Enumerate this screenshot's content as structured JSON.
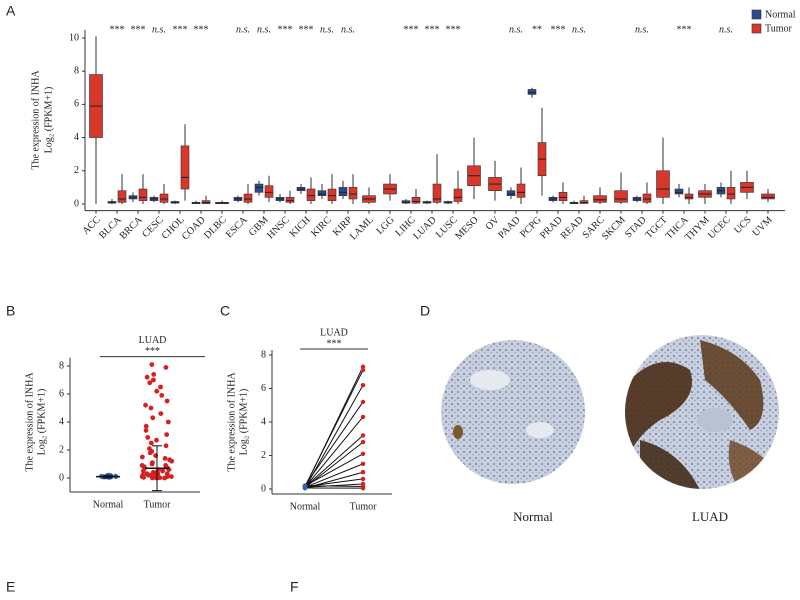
{
  "panels": {
    "labels": [
      "A",
      "B",
      "C",
      "D",
      "E",
      "F"
    ],
    "images": [
      {
        "caption": "Normal"
      },
      {
        "caption": "LUAD"
      }
    ]
  },
  "chart_data": [
    {
      "type": "box",
      "ylabel": [
        "The expression of INHA",
        "Log₂ (FPKM+1)"
      ],
      "categories": [
        "ACC",
        "BLCA",
        "BRCA",
        "CESC",
        "CHOL",
        "COAD",
        "DLBC",
        "ESCA",
        "GBM",
        "HNSC",
        "KICH",
        "KIRC",
        "KIRP",
        "LAML",
        "LGG",
        "LIHC",
        "LUAD",
        "LUSC",
        "MESO",
        "OV",
        "PAAD",
        "PCPG",
        "PRAD",
        "READ",
        "SARC",
        "SKCM",
        "STAD",
        "TGCT",
        "THCA",
        "THYM",
        "UCEC",
        "UCS",
        "UVM"
      ],
      "significance": [
        null,
        "***",
        "***",
        "n.s.",
        "***",
        "***",
        null,
        "n.s.",
        "n.s.",
        "***",
        "***",
        "n.s.",
        "n.s.",
        null,
        null,
        "***",
        "***",
        "***",
        null,
        null,
        "n.s.",
        "**",
        "***",
        "n.s.",
        null,
        null,
        "n.s.",
        null,
        "***",
        null,
        "n.s.",
        null,
        null
      ],
      "series": [
        {
          "name": "Normal",
          "color": "#2b4a8c",
          "boxes": [
            null,
            [
              0,
              0.05,
              0.1,
              0.15,
              0.3
            ],
            [
              0.1,
              0.3,
              0.4,
              0.5,
              0.7
            ],
            [
              0.1,
              0.2,
              0.3,
              0.4,
              0.5
            ],
            [
              0,
              0.05,
              0.1,
              0.15,
              0.2
            ],
            [
              0,
              0.02,
              0.05,
              0.1,
              0.2
            ],
            null,
            [
              0.1,
              0.2,
              0.3,
              0.4,
              0.5
            ],
            [
              0.5,
              0.7,
              1.0,
              1.2,
              1.4
            ],
            [
              0.1,
              0.2,
              0.3,
              0.4,
              0.6
            ],
            [
              0.6,
              0.8,
              0.9,
              1.0,
              1.2
            ],
            [
              0.3,
              0.5,
              0.6,
              0.8,
              1.2
            ],
            [
              0.3,
              0.5,
              0.7,
              1.0,
              1.4
            ],
            null,
            null,
            [
              0,
              0.05,
              0.1,
              0.2,
              0.3
            ],
            [
              0,
              0.05,
              0.1,
              0.15,
              0.2
            ],
            [
              0,
              0.05,
              0.1,
              0.15,
              0.2
            ],
            null,
            null,
            [
              0.3,
              0.5,
              0.6,
              0.8,
              1.0
            ],
            [
              6.4,
              6.6,
              6.7,
              6.9,
              7.0
            ],
            [
              0.1,
              0.2,
              0.3,
              0.4,
              0.5
            ],
            [
              0,
              0.02,
              0.05,
              0.1,
              0.2
            ],
            null,
            null,
            [
              0.1,
              0.2,
              0.3,
              0.4,
              0.5
            ],
            null,
            [
              0.4,
              0.6,
              0.7,
              0.9,
              1.2
            ],
            null,
            [
              0.4,
              0.6,
              0.8,
              1.0,
              1.3
            ],
            null,
            null
          ]
        },
        {
          "name": "Tumor",
          "color": "#d8372b",
          "boxes": [
            [
              0,
              4,
              5.9,
              7.8,
              10.1
            ],
            [
              0,
              0.1,
              0.3,
              0.8,
              1.8
            ],
            [
              0,
              0.2,
              0.4,
              0.9,
              1.8
            ],
            [
              0,
              0.1,
              0.3,
              0.6,
              1.2
            ],
            [
              0.2,
              0.9,
              1.6,
              3.5,
              4.8
            ],
            [
              0,
              0.02,
              0.08,
              0.2,
              0.5
            ],
            [
              0,
              0.02,
              0.05,
              0.1,
              0.2
            ],
            [
              0,
              0.1,
              0.3,
              0.6,
              1.2
            ],
            [
              0.1,
              0.4,
              0.7,
              1.1,
              1.7
            ],
            [
              0,
              0.1,
              0.2,
              0.4,
              0.8
            ],
            [
              0,
              0.2,
              0.5,
              0.9,
              1.6
            ],
            [
              0,
              0.2,
              0.5,
              0.9,
              1.8
            ],
            [
              0,
              0.3,
              0.6,
              1.0,
              1.8
            ],
            [
              0,
              0.1,
              0.3,
              0.5,
              1.0
            ],
            [
              0.2,
              0.6,
              0.9,
              1.2,
              1.8
            ],
            [
              0,
              0.05,
              0.15,
              0.4,
              0.9
            ],
            [
              0,
              0.1,
              0.3,
              1.2,
              3.0
            ],
            [
              0,
              0.15,
              0.4,
              0.9,
              2.0
            ],
            [
              0.3,
              1.1,
              1.7,
              2.3,
              4.0
            ],
            [
              0.2,
              0.8,
              1.2,
              1.6,
              2.6
            ],
            [
              0,
              0.4,
              0.7,
              1.2,
              2.2
            ],
            [
              0.5,
              1.7,
              2.7,
              3.7,
              5.8
            ],
            [
              0,
              0.2,
              0.4,
              0.7,
              1.3
            ],
            [
              0,
              0.03,
              0.08,
              0.2,
              0.5
            ],
            [
              0,
              0.1,
              0.25,
              0.5,
              1.0
            ],
            [
              0,
              0.1,
              0.3,
              0.8,
              1.9
            ],
            [
              0,
              0.1,
              0.3,
              0.6,
              1.3
            ],
            [
              0,
              0.4,
              0.9,
              2.0,
              4.0
            ],
            [
              0,
              0.3,
              0.4,
              0.6,
              1.0
            ],
            [
              0,
              0.4,
              0.6,
              0.8,
              1.2
            ],
            [
              0,
              0.3,
              0.6,
              1.0,
              2.0
            ],
            [
              0.3,
              0.7,
              1.0,
              1.3,
              2.0
            ],
            [
              0.1,
              0.3,
              0.4,
              0.6,
              0.9
            ]
          ]
        }
      ],
      "ylim": [
        -0.4,
        10.5
      ],
      "yticks": [
        0,
        2,
        4,
        6,
        8,
        10
      ],
      "legend": "top-right"
    },
    {
      "type": "strip",
      "title": "LUAD",
      "significance": "***",
      "ylabel": [
        "The expression of INHA",
        "Log₂ (FPKM+1)"
      ],
      "series": [
        {
          "name": "Normal",
          "color": "#2f62b0",
          "values": [
            0.05,
            0.1,
            0.15,
            0.08,
            0.12,
            0.2,
            0.1,
            0.05,
            0.18,
            0.1,
            0.07,
            0.13
          ],
          "center": 0.1,
          "error": 0.1
        },
        {
          "name": "Tumor",
          "color": "#d42020",
          "values": [
            8.1,
            7.9,
            7.4,
            7.2,
            7.0,
            6.8,
            6.5,
            6.2,
            5.9,
            5.5,
            5.2,
            5.0,
            4.6,
            4.3,
            4.0,
            3.7,
            3.4,
            3.1,
            2.9,
            2.7,
            2.5,
            2.3,
            2.1,
            1.9,
            1.8,
            1.6,
            1.5,
            1.4,
            1.3,
            1.2,
            1.1,
            1.0,
            0.9,
            0.9,
            0.8,
            0.7,
            0.7,
            0.6,
            0.6,
            0.5,
            0.5,
            0.4,
            0.4,
            0.3,
            0.3,
            0.3,
            0.2,
            0.2,
            0.2,
            0.1,
            0.1,
            0.1,
            0.1,
            0.05,
            0.05,
            0.02,
            0.02,
            0,
            0,
            0
          ],
          "center": 0.7,
          "error": 1.6
        }
      ],
      "ylim": [
        -1,
        8.6
      ],
      "yticks": [
        0,
        2,
        4,
        6,
        8
      ]
    },
    {
      "type": "paired",
      "title": "LUAD",
      "significance": "***",
      "ylabel": [
        "The expression of INHA",
        "Log₂ (FPKM+1)"
      ],
      "series": [
        {
          "name": "Normal",
          "color": "#2f62b0",
          "values": [
            0.1,
            0.15,
            0.05,
            0.2,
            0.1,
            0.12,
            0.08,
            0.18,
            0.1,
            0.05,
            0.14,
            0.1,
            0.2,
            0.06
          ]
        },
        {
          "name": "Tumor",
          "color": "#d42020",
          "values": [
            7.3,
            7.1,
            6.2,
            5.2,
            4.3,
            3.2,
            2.8,
            2.1,
            1.5,
            1.0,
            0.6,
            0.3,
            0.15,
            0.05
          ]
        }
      ],
      "line_color": "#111111",
      "ylim": [
        -0.3,
        8.3
      ],
      "yticks": [
        0,
        2,
        4,
        6,
        8
      ]
    }
  ]
}
